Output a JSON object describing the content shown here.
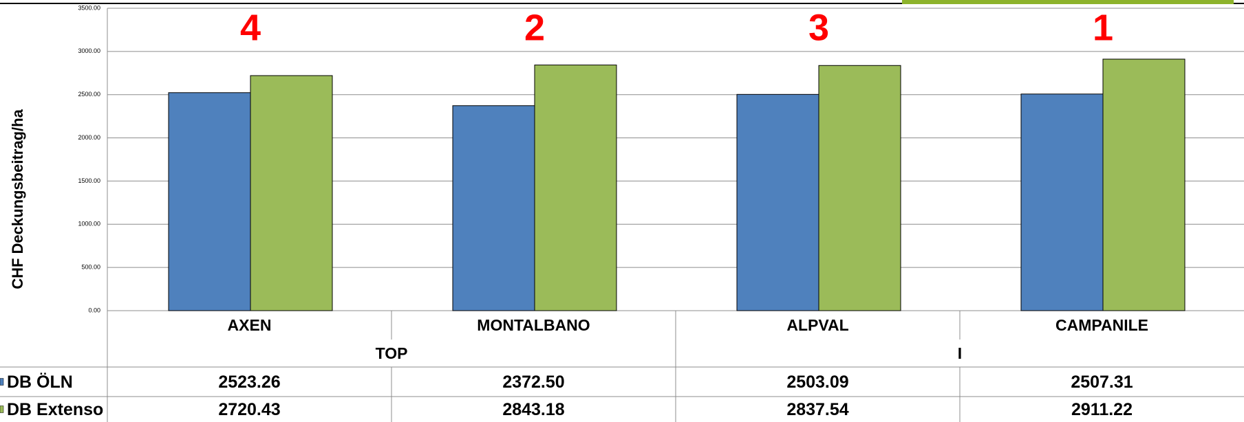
{
  "chart_data": {
    "type": "bar",
    "y_label": "CHF  Deckungsbeitrag/ha",
    "categories": [
      "AXEN",
      "MONTALBANO",
      "ALPVAL",
      "CAMPANILE"
    ],
    "groups": [
      "TOP",
      "I"
    ],
    "ranks": [
      4,
      2,
      3,
      1
    ],
    "series": [
      {
        "name": "DB ÖLN",
        "color": "#4f81bd",
        "values": [
          2523.26,
          2372.5,
          2503.09,
          2507.31
        ],
        "value_labels": [
          "2523.26",
          "2372.50",
          "2503.09",
          "2507.31"
        ]
      },
      {
        "name": "DB Extenso",
        "color": "#9bbb59",
        "values": [
          2720.43,
          2843.18,
          2837.54,
          2911.22
        ],
        "value_labels": [
          "2720.43",
          "2843.18",
          "2837.54",
          "2911.22"
        ]
      }
    ],
    "ylim": [
      0,
      3500
    ],
    "yticks": [
      {
        "value": 0,
        "label": "0.00"
      },
      {
        "value": 500,
        "label": "500.00"
      },
      {
        "value": 1000,
        "label": "1000.00"
      },
      {
        "value": 1500,
        "label": "1500.00"
      },
      {
        "value": 2000,
        "label": "2000.00"
      },
      {
        "value": 2500,
        "label": "2500.00"
      },
      {
        "value": 3000,
        "label": "3000.00"
      },
      {
        "value": 3500,
        "label": "3500.00"
      }
    ],
    "grid": true
  }
}
